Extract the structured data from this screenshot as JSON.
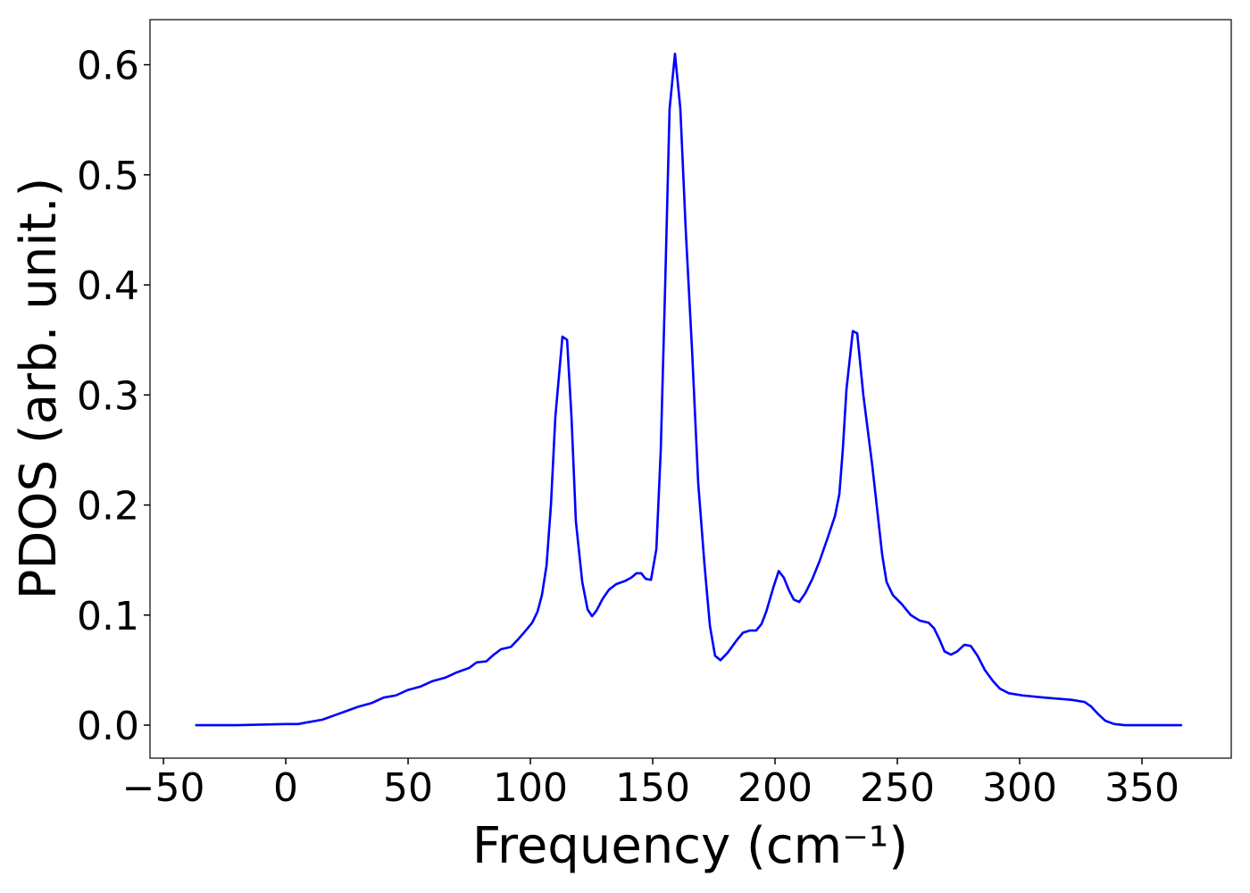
{
  "chart_data": {
    "type": "line",
    "xlabel": "Frequency (cm⁻¹)",
    "ylabel": "PDOS (arb. unit.)",
    "xlim": [
      -55.5,
      386.5
    ],
    "ylim": [
      -0.03,
      0.641
    ],
    "xticks": [
      {
        "value": -50,
        "label": "−50"
      },
      0,
      50,
      100,
      150,
      200,
      250,
      300,
      350
    ],
    "yticks": [
      {
        "value": 0,
        "label": "0.0"
      },
      0.1,
      0.2,
      0.3,
      0.4,
      0.5,
      0.6
    ],
    "grid": false,
    "series": [
      {
        "color": "#0000ff",
        "x": [
          -37,
          -20,
          0,
          5,
          10,
          15,
          20,
          25,
          30,
          35,
          40,
          45,
          50,
          55,
          60,
          65,
          70,
          75,
          78,
          82,
          85,
          88,
          92,
          95,
          98.5,
          100.7,
          102.9,
          104.7,
          106.6,
          108.4,
          110.2,
          113.1,
          115,
          116.8,
          118.6,
          121.2,
          123.4,
          125.2,
          127,
          129.6,
          132.1,
          135,
          138.7,
          141.2,
          143.4,
          145.3,
          147.1,
          149.3,
          151.5,
          153.3,
          155.1,
          156.9,
          159.1,
          161.3,
          163.5,
          166.1,
          168.6,
          171.2,
          173.4,
          175.5,
          177.7,
          180.7,
          184.3,
          186.9,
          189.8,
          192.3,
          194.5,
          196.4,
          199.3,
          201.5,
          203.6,
          205.8,
          207.7,
          209.9,
          212.4,
          215.3,
          218.2,
          221.5,
          224.5,
          226.3,
          227.7,
          229.2,
          231.8,
          233.6,
          236.1,
          239.8,
          243.8,
          245.6,
          248.2,
          251.8,
          255.5,
          259.1,
          262.8,
          265,
          267.2,
          269.3,
          271.9,
          274.5,
          277.4,
          280,
          282.8,
          285.8,
          289.1,
          292,
          295.6,
          301.1,
          310.2,
          321.2,
          326.6,
          329.2,
          332.1,
          335,
          338.7,
          343.1,
          366.4
        ],
        "values": [
          0,
          0,
          0.001,
          0.001,
          0.003,
          0.005,
          0.009,
          0.013,
          0.017,
          0.02,
          0.025,
          0.027,
          0.032,
          0.035,
          0.04,
          0.043,
          0.048,
          0.052,
          0.057,
          0.058,
          0.064,
          0.069,
          0.071,
          0.078,
          0.087,
          0.093,
          0.103,
          0.118,
          0.145,
          0.2,
          0.28,
          0.353,
          0.35,
          0.28,
          0.185,
          0.13,
          0.105,
          0.099,
          0.104,
          0.115,
          0.123,
          0.128,
          0.131,
          0.134,
          0.138,
          0.138,
          0.133,
          0.132,
          0.16,
          0.25,
          0.4,
          0.56,
          0.61,
          0.56,
          0.45,
          0.34,
          0.22,
          0.145,
          0.09,
          0.063,
          0.059,
          0.066,
          0.077,
          0.084,
          0.086,
          0.086,
          0.092,
          0.103,
          0.125,
          0.14,
          0.134,
          0.122,
          0.114,
          0.112,
          0.12,
          0.133,
          0.149,
          0.17,
          0.19,
          0.21,
          0.25,
          0.305,
          0.358,
          0.356,
          0.3,
          0.235,
          0.155,
          0.13,
          0.118,
          0.11,
          0.1,
          0.095,
          0.093,
          0.088,
          0.078,
          0.067,
          0.064,
          0.067,
          0.073,
          0.072,
          0.063,
          0.05,
          0.04,
          0.033,
          0.029,
          0.027,
          0.025,
          0.023,
          0.021,
          0.017,
          0.01,
          0.004,
          0.001,
          0,
          0
        ]
      }
    ]
  }
}
